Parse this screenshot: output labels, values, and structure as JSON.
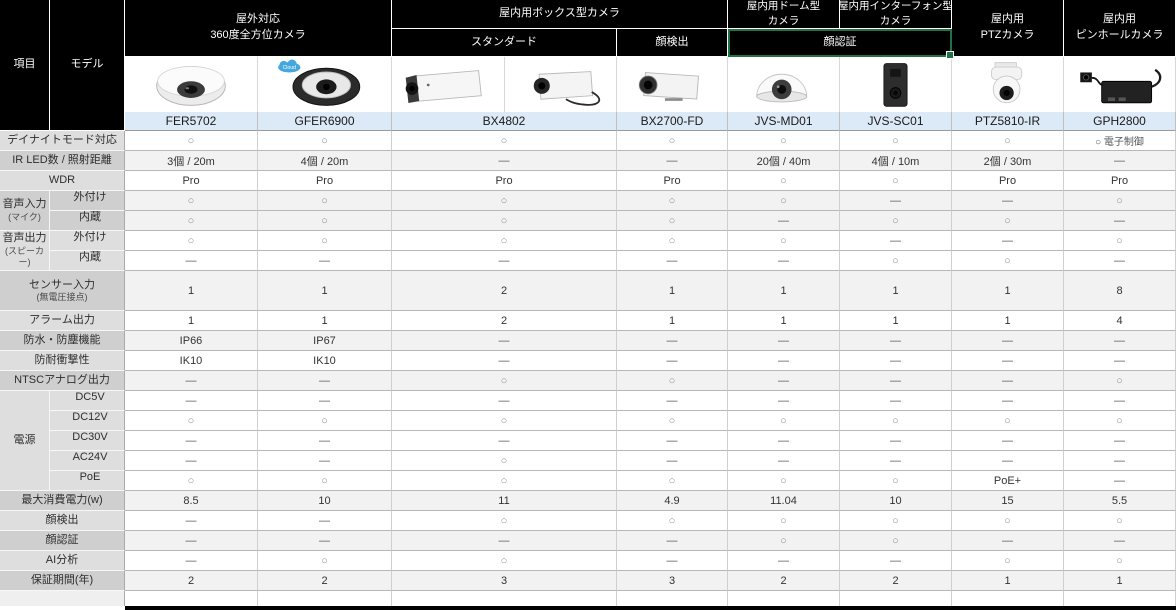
{
  "header": {
    "item_label": "項目",
    "model_label": "モデル",
    "categories": {
      "fisheye": {
        "line1": "屋外対応",
        "line2": "360度全方位カメラ"
      },
      "box": {
        "label": "屋内用ボックス型カメラ",
        "sub_standard": "スタンダード",
        "sub_face_detect": "顔検出"
      },
      "dome": {
        "line1": "屋内用ドーム型",
        "line2": "カメラ"
      },
      "intercom": {
        "line1": "屋内用インターフォン型",
        "line2": "カメラ"
      },
      "face_recognition": "顔認証",
      "ptz": {
        "line1": "屋内用",
        "line2": "PTZカメラ"
      },
      "pinhole": {
        "line1": "屋内用",
        "line2": "ピンホールカメラ"
      }
    },
    "models": [
      "FER5702",
      "GFER6900",
      "BX4802",
      "BX2700-FD",
      "JVS-MD01",
      "JVS-SC01",
      "PTZ5810-IR",
      "GPH2800"
    ],
    "cloud_badge": "Cloud"
  },
  "colors": {
    "selection_green": "#217346",
    "model_band_blue": "#dce9f6",
    "shaded_row_gray": "#f2f2f2",
    "label_gray": "#d6d6d6",
    "header_black": "#000000"
  },
  "selection": {
    "selected_cell": "顔認証"
  },
  "rows": [
    {
      "label": "デイナイトモード対応",
      "shade": false,
      "values": [
        "○",
        "○",
        "○",
        "○",
        "○",
        "○",
        "○",
        "○ 電子制御"
      ]
    },
    {
      "label": "IR LED数 / 照射距離",
      "shade": true,
      "values": [
        "3個 / 20m",
        "4個 / 20m",
        "—",
        "—",
        "20個 / 40m",
        "4個 / 10m",
        "2個 / 30m",
        "—"
      ]
    },
    {
      "label": "WDR",
      "shade": false,
      "values": [
        "Pro",
        "Pro",
        "Pro",
        "Pro",
        "○",
        "○",
        "Pro",
        "Pro"
      ]
    },
    {
      "label": "外付け",
      "sub": true,
      "group": {
        "name": "音声入力",
        "note": "(マイク)",
        "span": 2
      },
      "shade": true,
      "values": [
        "○",
        "○",
        "○",
        "○",
        "○",
        "—",
        "—",
        "○"
      ]
    },
    {
      "label": "内蔵",
      "sub": true,
      "shade": true,
      "values": [
        "○",
        "○",
        "○",
        "○",
        "—",
        "○",
        "○",
        "—"
      ]
    },
    {
      "label": "外付け",
      "sub": true,
      "group": {
        "name": "音声出力",
        "note": "(スピーカー)",
        "span": 2
      },
      "shade": false,
      "values": [
        "○",
        "○",
        "○",
        "○",
        "○",
        "—",
        "—",
        "○"
      ]
    },
    {
      "label": "内蔵",
      "sub": true,
      "shade": false,
      "values": [
        "—",
        "—",
        "—",
        "—",
        "—",
        "○",
        "○",
        "—"
      ]
    },
    {
      "label": "センサー入力",
      "note": "(無電圧接点)",
      "shade": true,
      "values": [
        "1",
        "1",
        "2",
        "1",
        "1",
        "1",
        "1",
        "8"
      ]
    },
    {
      "label": "アラーム出力",
      "shade": false,
      "values": [
        "1",
        "1",
        "2",
        "1",
        "1",
        "1",
        "1",
        "4"
      ]
    },
    {
      "label": "防水・防塵機能",
      "shade": true,
      "values": [
        "IP66",
        "IP67",
        "—",
        "—",
        "—",
        "—",
        "—",
        "—"
      ]
    },
    {
      "label": "防耐衝撃性",
      "shade": false,
      "values": [
        "IK10",
        "IK10",
        "—",
        "—",
        "—",
        "—",
        "—",
        "—"
      ]
    },
    {
      "label": "NTSCアナログ出力",
      "shade": true,
      "values": [
        "—",
        "—",
        "○",
        "○",
        "—",
        "—",
        "—",
        "○"
      ]
    },
    {
      "label": "DC5V",
      "sub": true,
      "group": {
        "name": "電源",
        "span": 5
      },
      "shade": false,
      "values": [
        "—",
        "—",
        "—",
        "—",
        "—",
        "—",
        "—",
        "—"
      ]
    },
    {
      "label": "DC12V",
      "sub": true,
      "shade": false,
      "values": [
        "○",
        "○",
        "○",
        "○",
        "○",
        "○",
        "○",
        "○"
      ]
    },
    {
      "label": "DC30V",
      "sub": true,
      "shade": false,
      "values": [
        "—",
        "—",
        "—",
        "—",
        "—",
        "—",
        "—",
        "—"
      ]
    },
    {
      "label": "AC24V",
      "sub": true,
      "shade": false,
      "values": [
        "—",
        "—",
        "○",
        "—",
        "—",
        "—",
        "—",
        "—"
      ]
    },
    {
      "label": "PoE",
      "sub": true,
      "shade": false,
      "values": [
        "○",
        "○",
        "○",
        "○",
        "○",
        "○",
        "PoE+",
        "—"
      ]
    },
    {
      "label": "最大消費電力(w)",
      "shade": true,
      "values": [
        "8.5",
        "10",
        "11",
        "4.9",
        "11.04",
        "10",
        "15",
        "5.5"
      ]
    },
    {
      "label": "顔検出",
      "shade": false,
      "values": [
        "—",
        "—",
        "○",
        "○",
        "○",
        "○",
        "○",
        "○"
      ]
    },
    {
      "label": "顔認証",
      "shade": true,
      "values": [
        "—",
        "—",
        "—",
        "—",
        "○",
        "○",
        "—",
        "—"
      ]
    },
    {
      "label": "AI分析",
      "shade": false,
      "values": [
        "—",
        "○",
        "○",
        "—",
        "—",
        "—",
        "○",
        "○"
      ]
    },
    {
      "label": "保証期間(年)",
      "shade": true,
      "values": [
        "2",
        "2",
        "3",
        "3",
        "2",
        "2",
        "1",
        "1"
      ]
    }
  ]
}
